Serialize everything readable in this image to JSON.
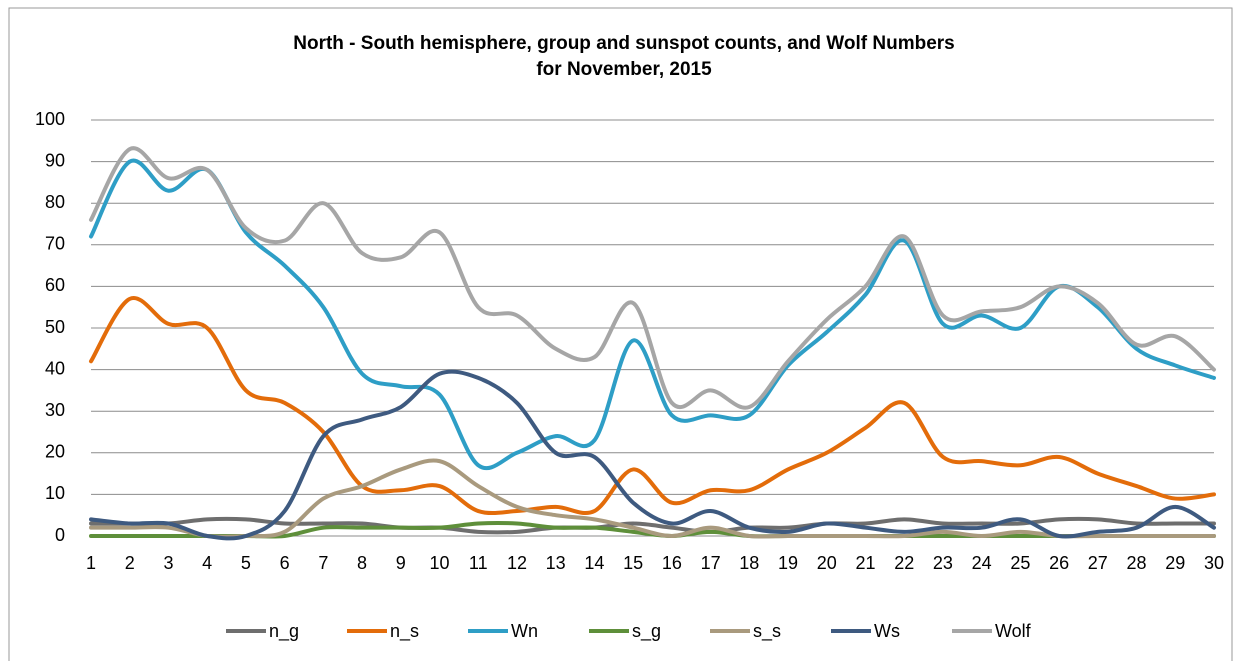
{
  "chart_data": {
    "type": "line",
    "title": [
      "North - South hemisphere, group and sunspot counts, and Wolf Numbers",
      "for November, 2015"
    ],
    "categories": [
      "1",
      "2",
      "3",
      "4",
      "5",
      "6",
      "7",
      "8",
      "9",
      "10",
      "11",
      "12",
      "13",
      "14",
      "15",
      "16",
      "17",
      "18",
      "19",
      "20",
      "21",
      "22",
      "23",
      "24",
      "25",
      "26",
      "27",
      "28",
      "29",
      "30"
    ],
    "series": [
      {
        "name": "n_g",
        "color": "#6e6e6e",
        "values": [
          3,
          3,
          3,
          4,
          4,
          3,
          3,
          3,
          2,
          2,
          1,
          1,
          2,
          2,
          3,
          2,
          1,
          2,
          2,
          3,
          3,
          4,
          3,
          3,
          3,
          4,
          4,
          3,
          3,
          3
        ]
      },
      {
        "name": "n_s",
        "color": "#e36c0a",
        "values": [
          42,
          57,
          51,
          50,
          35,
          32,
          25,
          12,
          11,
          12,
          6,
          6,
          7,
          6,
          16,
          8,
          11,
          11,
          16,
          20,
          26,
          32,
          19,
          18,
          17,
          19,
          15,
          12,
          9,
          10
        ]
      },
      {
        "name": "Wn",
        "color": "#2e9ec6",
        "values": [
          72,
          90,
          83,
          88,
          73,
          65,
          55,
          39,
          36,
          34,
          17,
          20,
          24,
          23,
          47,
          29,
          29,
          29,
          41,
          49,
          58,
          71,
          51,
          53,
          50,
          60,
          55,
          45,
          41,
          38
        ]
      },
      {
        "name": "s_g",
        "color": "#5e8f3a",
        "values": [
          0,
          0,
          0,
          0,
          0,
          0,
          2,
          2,
          2,
          2,
          3,
          3,
          2,
          2,
          1,
          0,
          1,
          0,
          0,
          0,
          0,
          0,
          0,
          0,
          0,
          0,
          0,
          0,
          0,
          0
        ]
      },
      {
        "name": "s_s",
        "color": "#a99a7e",
        "values": [
          2,
          2,
          2,
          0,
          0,
          1,
          9,
          12,
          16,
          18,
          12,
          7,
          5,
          4,
          2,
          0,
          2,
          0,
          0,
          0,
          0,
          0,
          1,
          0,
          1,
          0,
          0,
          0,
          0,
          0
        ]
      },
      {
        "name": "Ws",
        "color": "#3e5a80",
        "values": [
          4,
          3,
          3,
          0,
          0,
          6,
          24,
          28,
          31,
          39,
          38,
          32,
          20,
          19,
          8,
          3,
          6,
          2,
          1,
          3,
          2,
          1,
          2,
          2,
          4,
          0,
          1,
          2,
          7,
          2
        ]
      },
      {
        "name": "Wolf",
        "color": "#a6a6a6",
        "values": [
          76,
          93,
          86,
          88,
          74,
          71,
          80,
          68,
          67,
          73,
          55,
          53,
          45,
          43,
          56,
          32,
          35,
          31,
          42,
          52,
          60,
          72,
          53,
          54,
          55,
          60,
          56,
          46,
          48,
          40
        ]
      }
    ],
    "ylim": [
      0,
      100
    ],
    "yticks": [
      0,
      10,
      20,
      30,
      40,
      50,
      60,
      70,
      80,
      90,
      100
    ],
    "grid": true,
    "legend": "bottom"
  }
}
